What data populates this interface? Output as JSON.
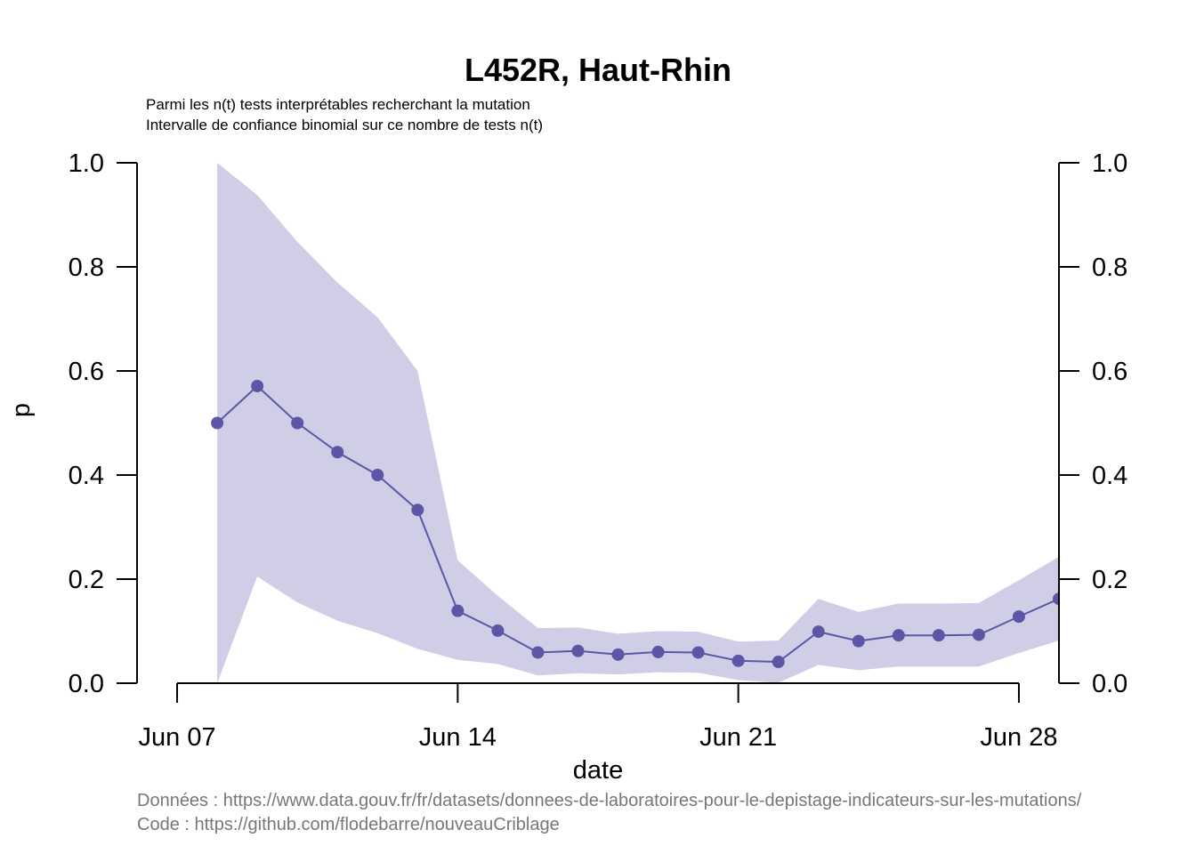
{
  "chart_data": {
    "type": "line",
    "title": "L452R, Haut-Rhin",
    "subtitle_lines": [
      "Parmi les n(t) tests interprétables recherchant la mutation",
      "Intervalle de confiance binomial sur ce nombre de tests n(t)"
    ],
    "xlabel": "date",
    "ylabel": "p",
    "ylim": [
      0,
      1
    ],
    "y_ticks": [
      "0.0",
      "0.2",
      "0.4",
      "0.6",
      "0.8",
      "1.0"
    ],
    "x_ticks": [
      {
        "date": "2021-06-07",
        "label": "Jun 07"
      },
      {
        "date": "2021-06-14",
        "label": "Jun 14"
      },
      {
        "date": "2021-06-21",
        "label": "Jun 21"
      },
      {
        "date": "2021-06-28",
        "label": "Jun 28"
      }
    ],
    "x_range": [
      "2021-06-06",
      "2021-06-29"
    ],
    "series": [
      {
        "color": "#5e55a6",
        "band_color": "#d0cee6",
        "points": [
          {
            "x": "2021-06-08",
            "y": 0.5,
            "lo": 0.0,
            "hi": 1.0
          },
          {
            "x": "2021-06-09",
            "y": 0.571,
            "lo": 0.205,
            "hi": 0.938
          },
          {
            "x": "2021-06-10",
            "y": 0.5,
            "lo": 0.155,
            "hi": 0.848
          },
          {
            "x": "2021-06-11",
            "y": 0.444,
            "lo": 0.12,
            "hi": 0.77
          },
          {
            "x": "2021-06-12",
            "y": 0.4,
            "lo": 0.096,
            "hi": 0.703
          },
          {
            "x": "2021-06-13",
            "y": 0.333,
            "lo": 0.066,
            "hi": 0.6
          },
          {
            "x": "2021-06-14",
            "y": 0.139,
            "lo": 0.045,
            "hi": 0.236
          },
          {
            "x": "2021-06-15",
            "y": 0.101,
            "lo": 0.037,
            "hi": 0.168
          },
          {
            "x": "2021-06-16",
            "y": 0.059,
            "lo": 0.015,
            "hi": 0.106
          },
          {
            "x": "2021-06-17",
            "y": 0.062,
            "lo": 0.019,
            "hi": 0.107
          },
          {
            "x": "2021-06-18",
            "y": 0.055,
            "lo": 0.017,
            "hi": 0.095
          },
          {
            "x": "2021-06-19",
            "y": 0.06,
            "lo": 0.021,
            "hi": 0.1
          },
          {
            "x": "2021-06-20",
            "y": 0.059,
            "lo": 0.02,
            "hi": 0.099
          },
          {
            "x": "2021-06-21",
            "y": 0.043,
            "lo": 0.006,
            "hi": 0.08
          },
          {
            "x": "2021-06-22",
            "y": 0.041,
            "lo": 0.001,
            "hi": 0.082
          },
          {
            "x": "2021-06-23",
            "y": 0.099,
            "lo": 0.035,
            "hi": 0.162
          },
          {
            "x": "2021-06-24",
            "y": 0.081,
            "lo": 0.025,
            "hi": 0.137
          },
          {
            "x": "2021-06-25",
            "y": 0.092,
            "lo": 0.032,
            "hi": 0.153
          },
          {
            "x": "2021-06-26",
            "y": 0.092,
            "lo": 0.032,
            "hi": 0.153
          },
          {
            "x": "2021-06-27",
            "y": 0.093,
            "lo": 0.032,
            "hi": 0.154
          },
          {
            "x": "2021-06-28",
            "y": 0.128,
            "lo": 0.058,
            "hi": 0.198
          },
          {
            "x": "2021-06-29",
            "y": 0.162,
            "lo": 0.082,
            "hi": 0.243
          }
        ]
      }
    ],
    "footer_lines": [
      "Données : https://www.data.gouv.fr/fr/datasets/donnees-de-laboratoires-pour-le-depistage-indicateurs-sur-les-mutations/",
      "Code : https://github.com/flodebarre/nouveauCriblage"
    ]
  }
}
